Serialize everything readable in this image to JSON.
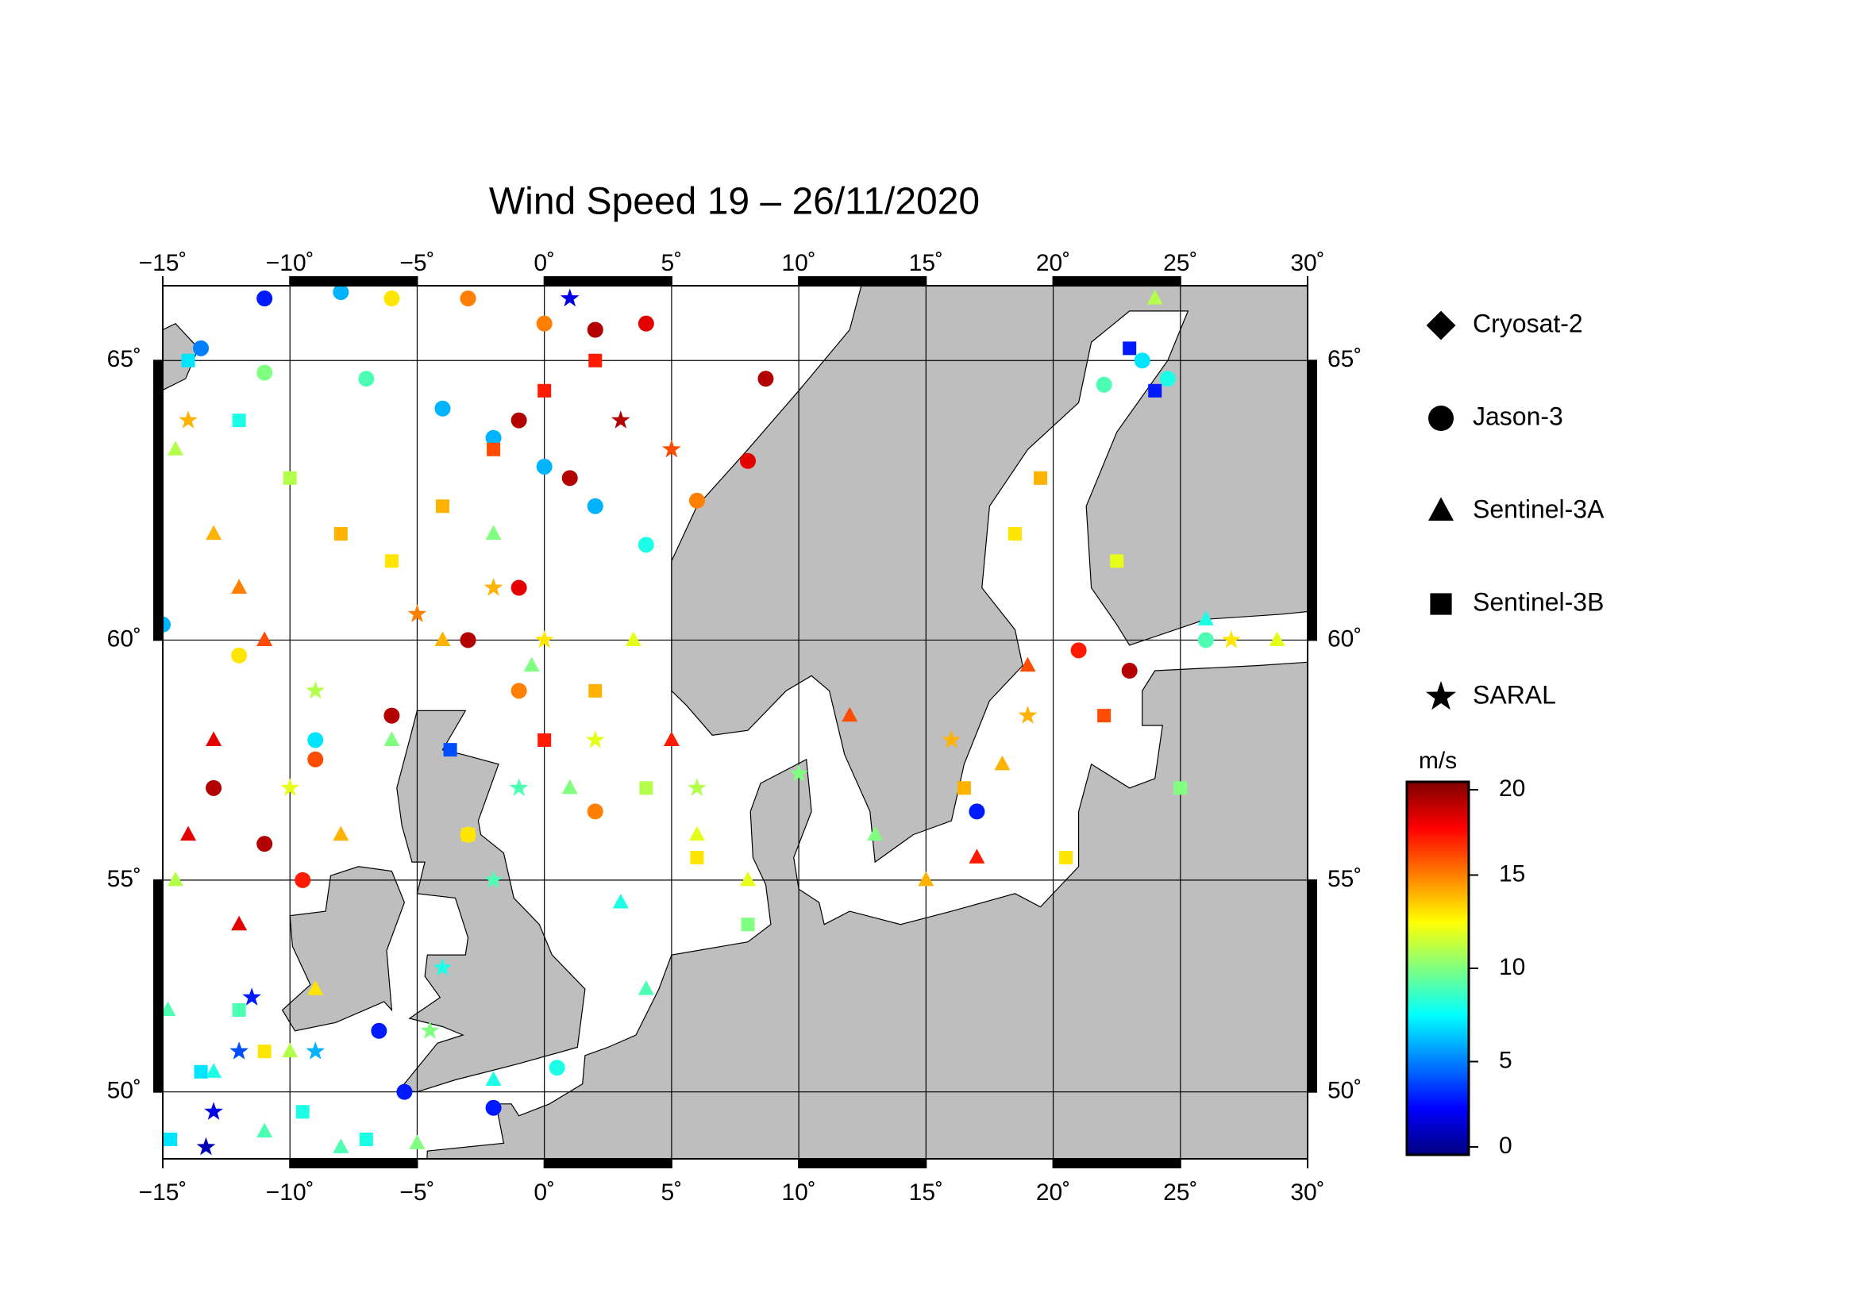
{
  "title": "Wind Speed 19 – 26/11/2020",
  "map": {
    "lonlim": [
      -15,
      30
    ],
    "latlim": [
      48.3,
      66.2
    ],
    "lonticks": [
      {
        "value": -15,
        "label": "−15˚"
      },
      {
        "value": -10,
        "label": "−10˚"
      },
      {
        "value": -5,
        "label": "−5˚"
      },
      {
        "value": 0,
        "label": "0˚"
      },
      {
        "value": 5,
        "label": "5˚"
      },
      {
        "value": 10,
        "label": "10˚"
      },
      {
        "value": 15,
        "label": "15˚"
      },
      {
        "value": 20,
        "label": "20˚"
      },
      {
        "value": 25,
        "label": "25˚"
      },
      {
        "value": 30,
        "label": "30˚"
      }
    ],
    "latticks": [
      {
        "value": 50,
        "label": "50˚"
      },
      {
        "value": 55,
        "label": "55˚"
      },
      {
        "value": 60,
        "label": "60˚"
      },
      {
        "value": 65,
        "label": "65˚"
      }
    ]
  },
  "colorbar": {
    "label": "m/s",
    "lim": [
      0,
      20
    ],
    "ticks": [
      0,
      5,
      10,
      15,
      20
    ]
  },
  "series": [
    {
      "name": "Cryosat-2",
      "marker": "diamond",
      "points": []
    },
    {
      "name": "Jason-3",
      "marker": "circle",
      "points": [
        [
          -13.5,
          65.2,
          5
        ],
        [
          -11,
          66,
          3
        ],
        [
          -8,
          66.1,
          6
        ],
        [
          -6,
          66,
          13
        ],
        [
          -3,
          66,
          15
        ],
        [
          0,
          65.6,
          15
        ],
        [
          2,
          65.5,
          19
        ],
        [
          4,
          65.6,
          18
        ],
        [
          -11,
          64.8,
          10
        ],
        [
          -7,
          64.7,
          9
        ],
        [
          -4,
          64.2,
          6
        ],
        [
          -2,
          63.7,
          6
        ],
        [
          0,
          63.2,
          6
        ],
        [
          2,
          62.5,
          6
        ],
        [
          4,
          61.8,
          8
        ],
        [
          -1,
          64,
          19
        ],
        [
          1,
          63,
          19
        ],
        [
          -1,
          61,
          18
        ],
        [
          -3,
          60,
          19
        ],
        [
          -6,
          58.5,
          19
        ],
        [
          -9,
          57.6,
          16
        ],
        [
          -13,
          57,
          19
        ],
        [
          -11,
          55.8,
          19
        ],
        [
          -9.5,
          55,
          17
        ],
        [
          -15,
          60.3,
          6
        ],
        [
          -12,
          59.7,
          13
        ],
        [
          -9,
          58,
          7
        ],
        [
          6,
          62.6,
          15
        ],
        [
          8,
          63.3,
          18
        ],
        [
          8.7,
          64.7,
          19
        ],
        [
          -1,
          59,
          15
        ],
        [
          2,
          56.5,
          15
        ],
        [
          -3,
          56,
          13
        ],
        [
          -6.5,
          51.5,
          3
        ],
        [
          -5.5,
          50,
          3
        ],
        [
          -2,
          49.6,
          3
        ],
        [
          0.5,
          50.6,
          8
        ],
        [
          17,
          56.5,
          3
        ],
        [
          21,
          59.8,
          17
        ],
        [
          23,
          59.4,
          19
        ],
        [
          26,
          60,
          9
        ],
        [
          22,
          64.6,
          9
        ],
        [
          23.5,
          65,
          7
        ],
        [
          24.5,
          64.7,
          8
        ]
      ]
    },
    {
      "name": "Sentinel-3A",
      "marker": "triangle",
      "points": [
        [
          -14.5,
          63.5,
          11
        ],
        [
          -13,
          62,
          14
        ],
        [
          -12,
          61,
          15
        ],
        [
          -11,
          60,
          16
        ],
        [
          -13,
          58,
          18
        ],
        [
          -14,
          56,
          18
        ],
        [
          -14.5,
          55,
          11
        ],
        [
          -14.8,
          52,
          9
        ],
        [
          -13,
          50.5,
          8
        ],
        [
          -11,
          49,
          9
        ],
        [
          -10,
          51,
          11
        ],
        [
          -9,
          52.5,
          13
        ],
        [
          -12,
          54,
          18
        ],
        [
          -8,
          56,
          14
        ],
        [
          -6,
          58,
          10
        ],
        [
          -4,
          60,
          14
        ],
        [
          -2,
          62,
          10
        ],
        [
          -0.5,
          59.5,
          10
        ],
        [
          1,
          57,
          10
        ],
        [
          3,
          54.5,
          8
        ],
        [
          4,
          52.5,
          9
        ],
        [
          3.5,
          60,
          12
        ],
        [
          5,
          58,
          17
        ],
        [
          6,
          56,
          12
        ],
        [
          8,
          55,
          12
        ],
        [
          12,
          58.5,
          16
        ],
        [
          13,
          56,
          10
        ],
        [
          15,
          55,
          14
        ],
        [
          17,
          55.5,
          17
        ],
        [
          18,
          57.5,
          14
        ],
        [
          19,
          59.5,
          16
        ],
        [
          24,
          66,
          11
        ],
        [
          26,
          60.4,
          8
        ],
        [
          28.8,
          60,
          12
        ],
        [
          -2,
          50.3,
          8
        ],
        [
          -5,
          48.7,
          10
        ],
        [
          -8,
          48.6,
          9
        ]
      ]
    },
    {
      "name": "Sentinel-3B",
      "marker": "square",
      "points": [
        [
          -14,
          65,
          7
        ],
        [
          -12,
          64,
          8
        ],
        [
          -10,
          63,
          11
        ],
        [
          -8,
          62,
          14
        ],
        [
          -6,
          61.5,
          13
        ],
        [
          -4,
          62.5,
          14
        ],
        [
          -2,
          63.5,
          16
        ],
        [
          0,
          64.5,
          17
        ],
        [
          2,
          65,
          17
        ],
        [
          -12,
          52,
          9
        ],
        [
          -13.5,
          50.5,
          7
        ],
        [
          -14.7,
          48.8,
          7
        ],
        [
          -11,
          51,
          13
        ],
        [
          -9.5,
          49.5,
          8
        ],
        [
          -7,
          48.8,
          8
        ],
        [
          -3,
          56,
          13
        ],
        [
          0,
          58,
          17
        ],
        [
          2,
          59,
          14
        ],
        [
          4,
          57,
          11
        ],
        [
          6,
          55.5,
          13
        ],
        [
          8,
          54,
          10
        ],
        [
          -3.7,
          57.8,
          4
        ],
        [
          22,
          58.5,
          16
        ],
        [
          22.5,
          61.5,
          12
        ],
        [
          18.5,
          62,
          13
        ],
        [
          19.5,
          63,
          14
        ],
        [
          23,
          65.2,
          3
        ],
        [
          24,
          64.5,
          3
        ],
        [
          16.5,
          57,
          14
        ],
        [
          20.5,
          55.5,
          13
        ],
        [
          25,
          57,
          10
        ]
      ]
    },
    {
      "name": "SARAL",
      "marker": "star",
      "points": [
        [
          -13.3,
          48.6,
          1
        ],
        [
          -13,
          49.5,
          2
        ],
        [
          -12,
          51,
          4
        ],
        [
          -11.5,
          52.3,
          3
        ],
        [
          -10,
          57,
          12
        ],
        [
          -9,
          59,
          11
        ],
        [
          -2,
          61,
          14
        ],
        [
          0,
          60,
          13
        ],
        [
          2,
          58,
          12
        ],
        [
          -1,
          57,
          9
        ],
        [
          -2,
          55,
          9
        ],
        [
          -4,
          53,
          8
        ],
        [
          -4.5,
          51.5,
          10
        ],
        [
          -9,
          51,
          6
        ],
        [
          1,
          66,
          2
        ],
        [
          3,
          64,
          19
        ],
        [
          5,
          63.5,
          16
        ],
        [
          6,
          57,
          11
        ],
        [
          10,
          57.3,
          10
        ],
        [
          16,
          58,
          14
        ],
        [
          19,
          58.5,
          14
        ],
        [
          27,
          60,
          13
        ],
        [
          -14,
          64,
          14
        ],
        [
          -5,
          60.5,
          15
        ]
      ]
    }
  ]
}
